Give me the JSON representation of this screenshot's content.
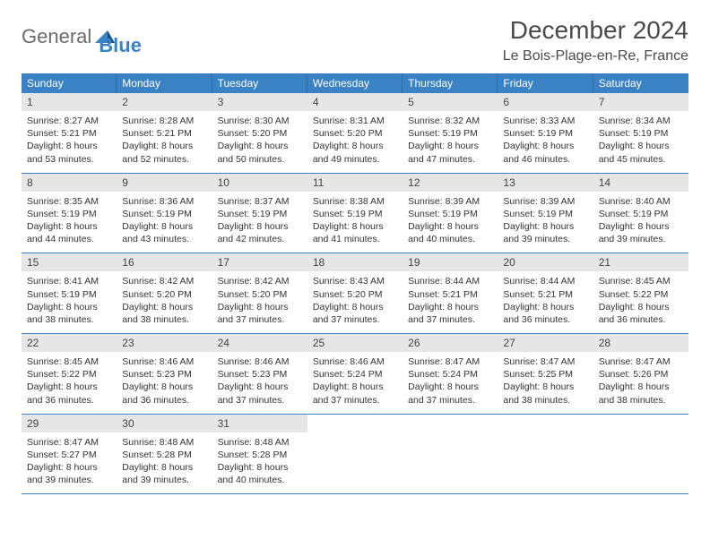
{
  "logo": {
    "general": "General",
    "blue": "Blue"
  },
  "title": "December 2024",
  "location": "Le Bois-Plage-en-Re, France",
  "colors": {
    "header_bg": "#3b82c4",
    "header_text": "#ffffff",
    "daynum_bg": "#e6e6e6",
    "week_border": "#3b82c4",
    "text": "#333333",
    "title_color": "#4a4a4a"
  },
  "typography": {
    "title_fontsize": 28,
    "location_fontsize": 16,
    "dow_fontsize": 12,
    "daynum_fontsize": 12,
    "body_fontsize": 10.5
  },
  "dow": [
    "Sunday",
    "Monday",
    "Tuesday",
    "Wednesday",
    "Thursday",
    "Friday",
    "Saturday"
  ],
  "days": [
    {
      "n": "1",
      "sr": "8:27 AM",
      "ss": "5:21 PM",
      "dl": "8 hours and 53 minutes."
    },
    {
      "n": "2",
      "sr": "8:28 AM",
      "ss": "5:21 PM",
      "dl": "8 hours and 52 minutes."
    },
    {
      "n": "3",
      "sr": "8:30 AM",
      "ss": "5:20 PM",
      "dl": "8 hours and 50 minutes."
    },
    {
      "n": "4",
      "sr": "8:31 AM",
      "ss": "5:20 PM",
      "dl": "8 hours and 49 minutes."
    },
    {
      "n": "5",
      "sr": "8:32 AM",
      "ss": "5:19 PM",
      "dl": "8 hours and 47 minutes."
    },
    {
      "n": "6",
      "sr": "8:33 AM",
      "ss": "5:19 PM",
      "dl": "8 hours and 46 minutes."
    },
    {
      "n": "7",
      "sr": "8:34 AM",
      "ss": "5:19 PM",
      "dl": "8 hours and 45 minutes."
    },
    {
      "n": "8",
      "sr": "8:35 AM",
      "ss": "5:19 PM",
      "dl": "8 hours and 44 minutes."
    },
    {
      "n": "9",
      "sr": "8:36 AM",
      "ss": "5:19 PM",
      "dl": "8 hours and 43 minutes."
    },
    {
      "n": "10",
      "sr": "8:37 AM",
      "ss": "5:19 PM",
      "dl": "8 hours and 42 minutes."
    },
    {
      "n": "11",
      "sr": "8:38 AM",
      "ss": "5:19 PM",
      "dl": "8 hours and 41 minutes."
    },
    {
      "n": "12",
      "sr": "8:39 AM",
      "ss": "5:19 PM",
      "dl": "8 hours and 40 minutes."
    },
    {
      "n": "13",
      "sr": "8:39 AM",
      "ss": "5:19 PM",
      "dl": "8 hours and 39 minutes."
    },
    {
      "n": "14",
      "sr": "8:40 AM",
      "ss": "5:19 PM",
      "dl": "8 hours and 39 minutes."
    },
    {
      "n": "15",
      "sr": "8:41 AM",
      "ss": "5:19 PM",
      "dl": "8 hours and 38 minutes."
    },
    {
      "n": "16",
      "sr": "8:42 AM",
      "ss": "5:20 PM",
      "dl": "8 hours and 38 minutes."
    },
    {
      "n": "17",
      "sr": "8:42 AM",
      "ss": "5:20 PM",
      "dl": "8 hours and 37 minutes."
    },
    {
      "n": "18",
      "sr": "8:43 AM",
      "ss": "5:20 PM",
      "dl": "8 hours and 37 minutes."
    },
    {
      "n": "19",
      "sr": "8:44 AM",
      "ss": "5:21 PM",
      "dl": "8 hours and 37 minutes."
    },
    {
      "n": "20",
      "sr": "8:44 AM",
      "ss": "5:21 PM",
      "dl": "8 hours and 36 minutes."
    },
    {
      "n": "21",
      "sr": "8:45 AM",
      "ss": "5:22 PM",
      "dl": "8 hours and 36 minutes."
    },
    {
      "n": "22",
      "sr": "8:45 AM",
      "ss": "5:22 PM",
      "dl": "8 hours and 36 minutes."
    },
    {
      "n": "23",
      "sr": "8:46 AM",
      "ss": "5:23 PM",
      "dl": "8 hours and 36 minutes."
    },
    {
      "n": "24",
      "sr": "8:46 AM",
      "ss": "5:23 PM",
      "dl": "8 hours and 37 minutes."
    },
    {
      "n": "25",
      "sr": "8:46 AM",
      "ss": "5:24 PM",
      "dl": "8 hours and 37 minutes."
    },
    {
      "n": "26",
      "sr": "8:47 AM",
      "ss": "5:24 PM",
      "dl": "8 hours and 37 minutes."
    },
    {
      "n": "27",
      "sr": "8:47 AM",
      "ss": "5:25 PM",
      "dl": "8 hours and 38 minutes."
    },
    {
      "n": "28",
      "sr": "8:47 AM",
      "ss": "5:26 PM",
      "dl": "8 hours and 38 minutes."
    },
    {
      "n": "29",
      "sr": "8:47 AM",
      "ss": "5:27 PM",
      "dl": "8 hours and 39 minutes."
    },
    {
      "n": "30",
      "sr": "8:48 AM",
      "ss": "5:28 PM",
      "dl": "8 hours and 39 minutes."
    },
    {
      "n": "31",
      "sr": "8:48 AM",
      "ss": "5:28 PM",
      "dl": "8 hours and 40 minutes."
    }
  ],
  "labels": {
    "sunrise": "Sunrise:",
    "sunset": "Sunset:",
    "daylight": "Daylight:"
  }
}
